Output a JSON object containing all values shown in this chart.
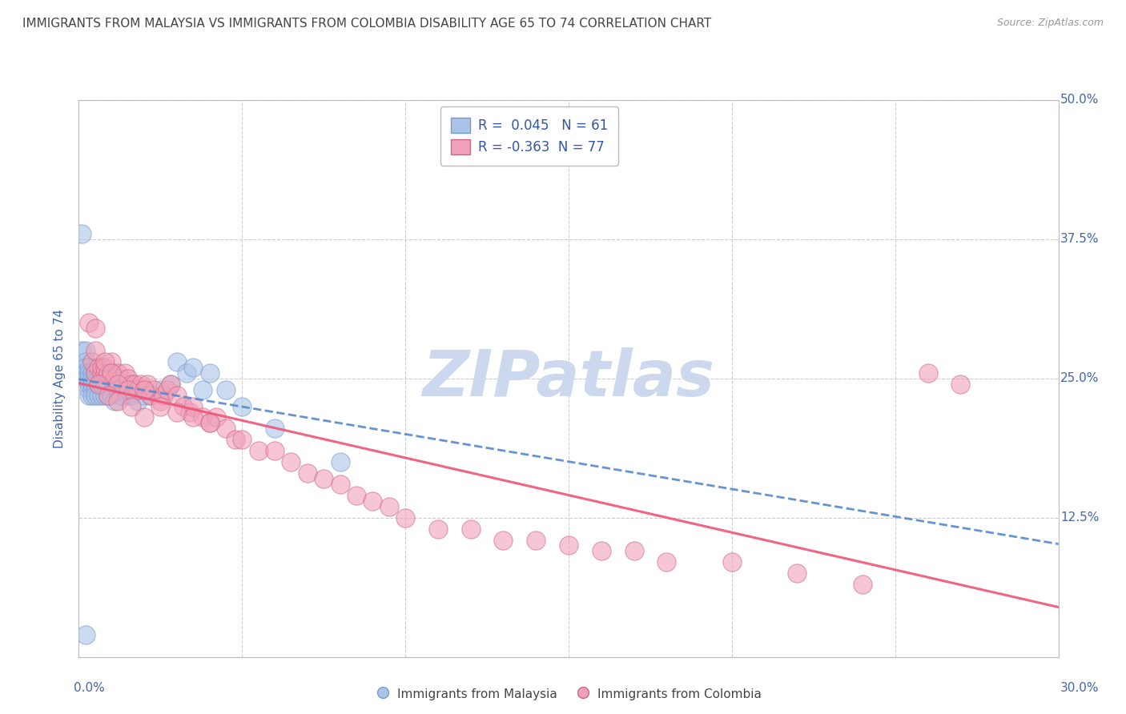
{
  "title": "IMMIGRANTS FROM MALAYSIA VS IMMIGRANTS FROM COLOMBIA DISABILITY AGE 65 TO 74 CORRELATION CHART",
  "source": "Source: ZipAtlas.com",
  "ylabel": "Disability Age 65 to 74",
  "x_min": 0.0,
  "x_max": 0.3,
  "y_min": 0.0,
  "y_max": 0.5,
  "malaysia_R": 0.045,
  "malaysia_N": 61,
  "colombia_R": -0.363,
  "colombia_N": 77,
  "malaysia_color": "#aac4e8",
  "colombia_color": "#f0a0b8",
  "malaysia_edge_color": "#7799cc",
  "colombia_edge_color": "#cc6688",
  "malaysia_line_color": "#5588cc",
  "colombia_line_color": "#ee5577",
  "watermark_color": "#ccd8ee",
  "legend_text_color": "#3355aa",
  "title_color": "#444444",
  "axis_label_color": "#4466aa",
  "grid_color": "#cccccc",
  "malaysia_x": [
    0.001,
    0.001,
    0.001,
    0.002,
    0.002,
    0.002,
    0.002,
    0.002,
    0.003,
    0.003,
    0.003,
    0.003,
    0.003,
    0.003,
    0.004,
    0.004,
    0.004,
    0.004,
    0.004,
    0.005,
    0.005,
    0.005,
    0.005,
    0.005,
    0.005,
    0.006,
    0.006,
    0.006,
    0.006,
    0.007,
    0.007,
    0.007,
    0.008,
    0.008,
    0.008,
    0.009,
    0.009,
    0.01,
    0.01,
    0.011,
    0.011,
    0.012,
    0.013,
    0.014,
    0.015,
    0.016,
    0.018,
    0.02,
    0.022,
    0.025,
    0.028,
    0.03,
    0.033,
    0.035,
    0.038,
    0.04,
    0.045,
    0.05,
    0.06,
    0.08,
    0.002
  ],
  "malaysia_y": [
    0.38,
    0.275,
    0.255,
    0.275,
    0.265,
    0.26,
    0.255,
    0.25,
    0.26,
    0.255,
    0.25,
    0.245,
    0.24,
    0.235,
    0.255,
    0.25,
    0.245,
    0.24,
    0.235,
    0.26,
    0.255,
    0.25,
    0.245,
    0.24,
    0.235,
    0.255,
    0.25,
    0.245,
    0.235,
    0.25,
    0.245,
    0.235,
    0.255,
    0.245,
    0.235,
    0.245,
    0.235,
    0.25,
    0.235,
    0.245,
    0.23,
    0.24,
    0.235,
    0.24,
    0.235,
    0.235,
    0.23,
    0.235,
    0.235,
    0.24,
    0.245,
    0.265,
    0.255,
    0.26,
    0.24,
    0.255,
    0.24,
    0.225,
    0.205,
    0.175,
    0.02
  ],
  "colombia_x": [
    0.003,
    0.004,
    0.005,
    0.005,
    0.006,
    0.007,
    0.007,
    0.008,
    0.008,
    0.009,
    0.01,
    0.01,
    0.011,
    0.012,
    0.013,
    0.014,
    0.015,
    0.016,
    0.017,
    0.018,
    0.019,
    0.02,
    0.021,
    0.022,
    0.023,
    0.025,
    0.026,
    0.027,
    0.028,
    0.03,
    0.032,
    0.034,
    0.035,
    0.038,
    0.04,
    0.042,
    0.045,
    0.048,
    0.05,
    0.055,
    0.06,
    0.065,
    0.07,
    0.075,
    0.08,
    0.085,
    0.09,
    0.095,
    0.1,
    0.11,
    0.12,
    0.13,
    0.14,
    0.15,
    0.16,
    0.17,
    0.18,
    0.2,
    0.22,
    0.24,
    0.005,
    0.008,
    0.01,
    0.012,
    0.015,
    0.02,
    0.025,
    0.03,
    0.035,
    0.04,
    0.006,
    0.009,
    0.012,
    0.016,
    0.02,
    0.26,
    0.27
  ],
  "colombia_y": [
    0.3,
    0.265,
    0.295,
    0.255,
    0.26,
    0.255,
    0.26,
    0.255,
    0.26,
    0.255,
    0.265,
    0.255,
    0.25,
    0.255,
    0.25,
    0.255,
    0.25,
    0.245,
    0.245,
    0.24,
    0.245,
    0.24,
    0.245,
    0.235,
    0.24,
    0.23,
    0.235,
    0.24,
    0.245,
    0.235,
    0.225,
    0.22,
    0.225,
    0.215,
    0.21,
    0.215,
    0.205,
    0.195,
    0.195,
    0.185,
    0.185,
    0.175,
    0.165,
    0.16,
    0.155,
    0.145,
    0.14,
    0.135,
    0.125,
    0.115,
    0.115,
    0.105,
    0.105,
    0.1,
    0.095,
    0.095,
    0.085,
    0.085,
    0.075,
    0.065,
    0.275,
    0.265,
    0.255,
    0.245,
    0.24,
    0.24,
    0.225,
    0.22,
    0.215,
    0.21,
    0.245,
    0.235,
    0.23,
    0.225,
    0.215,
    0.255,
    0.245
  ]
}
